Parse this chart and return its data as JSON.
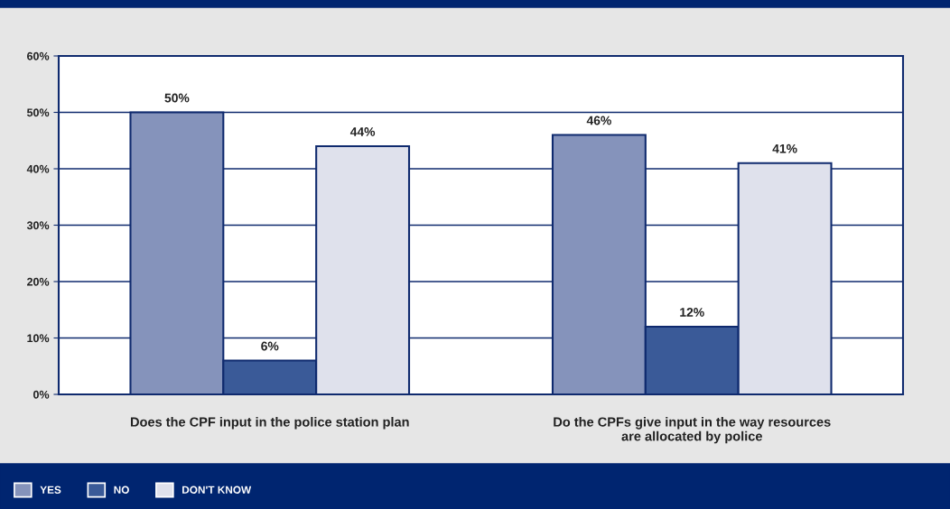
{
  "chart_data": {
    "type": "bar",
    "categories": [
      "Does the CPF input in the police station plan",
      "Do the CPFs give input in the way resources\nare allocated by police"
    ],
    "series": [
      {
        "name": "YES",
        "color": "#8593bb",
        "values": [
          50,
          46
        ],
        "value_labels": [
          "50%",
          "46%"
        ]
      },
      {
        "name": "NO",
        "color": "#3a5a98",
        "values": [
          6,
          12
        ],
        "value_labels": [
          "6%",
          "12%"
        ]
      },
      {
        "name": "DON'T KNOW",
        "color": "#dfe1ec",
        "values": [
          44,
          41
        ],
        "value_labels": [
          "44%",
          "41%"
        ]
      }
    ],
    "ylim": [
      0,
      60
    ],
    "yticks": [
      {
        "value": 0,
        "label": "0%"
      },
      {
        "value": 10,
        "label": "10%"
      },
      {
        "value": 20,
        "label": "20%"
      },
      {
        "value": 30,
        "label": "30%"
      },
      {
        "value": 40,
        "label": "40%"
      },
      {
        "value": 50,
        "label": "50%"
      },
      {
        "value": 60,
        "label": "60%"
      }
    ],
    "grid": "y",
    "legend": "bottom left"
  }
}
